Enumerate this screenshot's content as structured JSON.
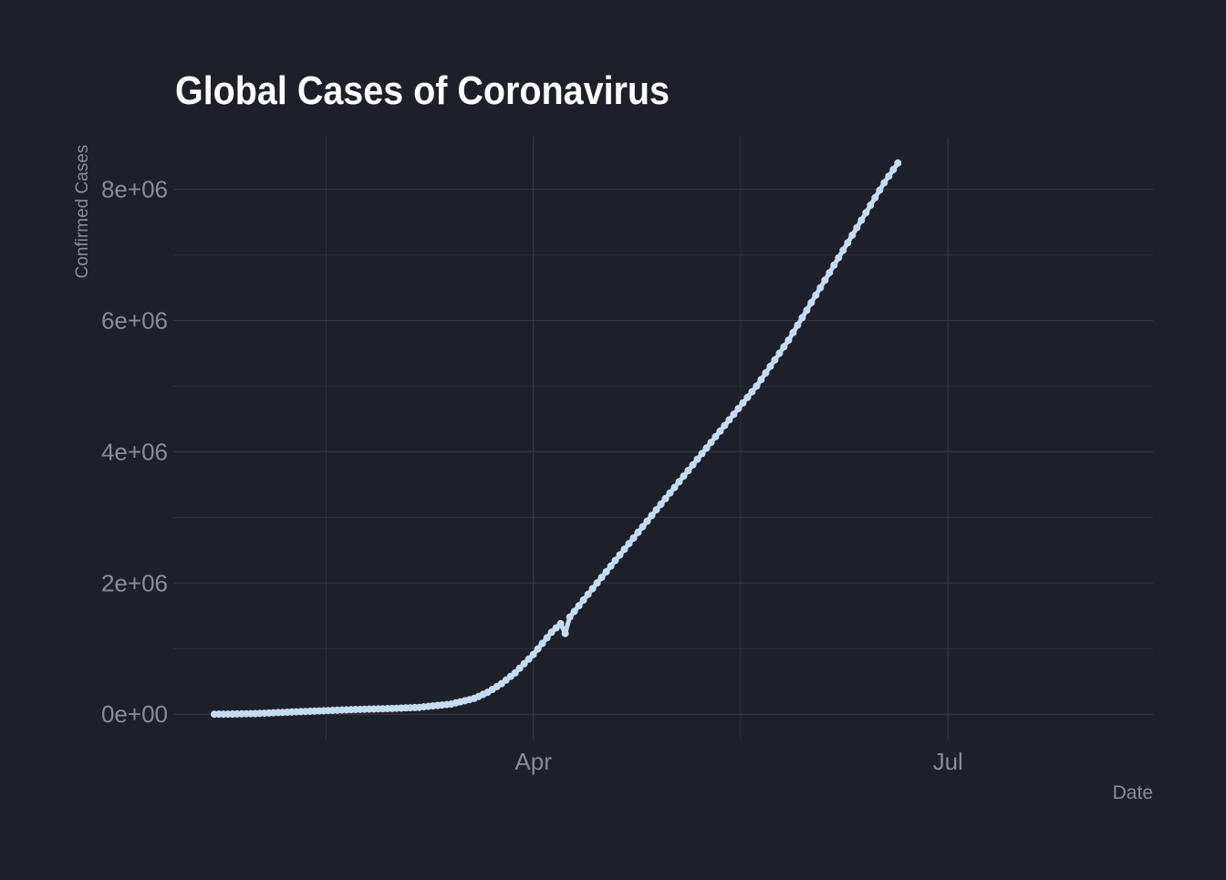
{
  "chart_data": {
    "type": "line",
    "title": "Global Cases of Coronavirus",
    "xlabel": "Date",
    "ylabel": "Confirmed Cases",
    "x_tick_labels": [
      {
        "date": "2020-04-01",
        "label": "Apr"
      },
      {
        "date": "2020-07-01",
        "label": "Jul"
      }
    ],
    "y_tick_labels": [
      {
        "value": 0,
        "label": "0e+00"
      },
      {
        "value": 2000000,
        "label": "2e+06"
      },
      {
        "value": 4000000,
        "label": "4e+06"
      },
      {
        "value": 6000000,
        "label": "6e+06"
      },
      {
        "value": 8000000,
        "label": "8e+06"
      }
    ],
    "xlim": [
      "2020-01-13",
      "2020-08-15"
    ],
    "ylim": [
      -400000,
      8800000
    ],
    "grid": true,
    "legend": "none",
    "colors": {
      "background": "#1e2029",
      "line": "#c5dcf5",
      "grid": "#33363f",
      "text": "#8a8c93",
      "title": "#ffffff"
    },
    "series": [
      {
        "values": [
          {
            "x": "2020-01-22",
            "y": 555
          },
          {
            "x": "2020-01-25",
            "y": 2000
          },
          {
            "x": "2020-01-31",
            "y": 10000
          },
          {
            "x": "2020-02-07",
            "y": 31000
          },
          {
            "x": "2020-02-14",
            "y": 50000
          },
          {
            "x": "2020-02-21",
            "y": 70000
          },
          {
            "x": "2020-03-01",
            "y": 88000
          },
          {
            "x": "2020-03-07",
            "y": 105000
          },
          {
            "x": "2020-03-14",
            "y": 155000
          },
          {
            "x": "2020-03-19",
            "y": 240000
          },
          {
            "x": "2020-03-22",
            "y": 335000
          },
          {
            "x": "2020-03-25",
            "y": 465000
          },
          {
            "x": "2020-03-28",
            "y": 630000
          },
          {
            "x": "2020-04-01",
            "y": 910000
          },
          {
            "x": "2020-04-05",
            "y": 1250000
          },
          {
            "x": "2020-04-07",
            "y": 1380000
          },
          {
            "x": "2020-04-08",
            "y": 1230000
          },
          {
            "x": "2020-04-09",
            "y": 1480000
          },
          {
            "x": "2020-04-15",
            "y": 2000000
          },
          {
            "x": "2020-04-22",
            "y": 2600000
          },
          {
            "x": "2020-04-29",
            "y": 3200000
          },
          {
            "x": "2020-05-06",
            "y": 3800000
          },
          {
            "x": "2020-05-13",
            "y": 4400000
          },
          {
            "x": "2020-05-20",
            "y": 5000000
          },
          {
            "x": "2020-05-27",
            "y": 5700000
          },
          {
            "x": "2020-06-03",
            "y": 6500000
          },
          {
            "x": "2020-06-10",
            "y": 7300000
          },
          {
            "x": "2020-06-17",
            "y": 8100000
          },
          {
            "x": "2020-06-20",
            "y": 8400000
          }
        ]
      }
    ]
  }
}
